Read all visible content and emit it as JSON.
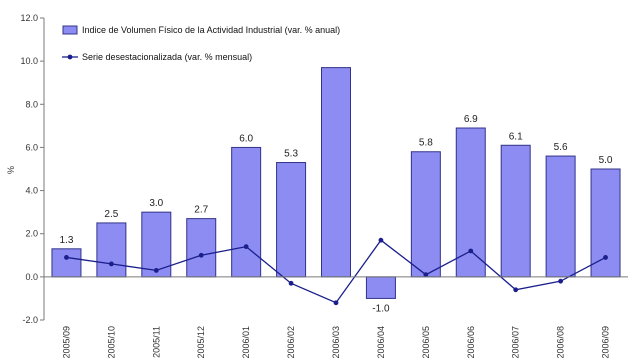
{
  "chart_data": {
    "type": "bar",
    "title": "",
    "xlabel": "",
    "ylabel": "%",
    "ylim": [
      -2.0,
      12.0
    ],
    "yticks": [
      "-2.0",
      "0.0",
      "2.0",
      "4.0",
      "6.0",
      "8.0",
      "10.0",
      "12.0"
    ],
    "ytick_values": [
      -2,
      0,
      2,
      4,
      6,
      8,
      10,
      12
    ],
    "grid": false,
    "legend_position": "top-left",
    "categories": [
      "2005/09",
      "2005/10",
      "2005/11",
      "2005/12",
      "2006/01",
      "2006/02",
      "2006/03",
      "2006/04",
      "2006/05",
      "2006/06",
      "2006/07",
      "2006/08",
      "2006/09"
    ],
    "series": [
      {
        "name": "Indice de Volumen Físico de la Actividad Industrial (var. % anual)",
        "kind": "bar",
        "color": "#8c8cf2",
        "values": [
          1.3,
          2.5,
          3.0,
          2.7,
          6.0,
          5.3,
          9.7,
          -1.0,
          5.8,
          6.9,
          6.1,
          5.6,
          5.0
        ],
        "labels": [
          "1.3",
          "2.5",
          "3.0",
          "2.7",
          "6.0",
          "5.3",
          "",
          "-1.0",
          "5.8",
          "6.9",
          "6.1",
          "5.6",
          "5.0"
        ]
      },
      {
        "name": "Serie desestacionalizada (var. % mensual)",
        "kind": "line",
        "color": "#1a1f8c",
        "values": [
          0.9,
          0.6,
          0.3,
          1.0,
          1.4,
          -0.3,
          -1.2,
          1.7,
          0.1,
          1.2,
          -0.6,
          -0.2,
          0.9
        ]
      }
    ]
  }
}
